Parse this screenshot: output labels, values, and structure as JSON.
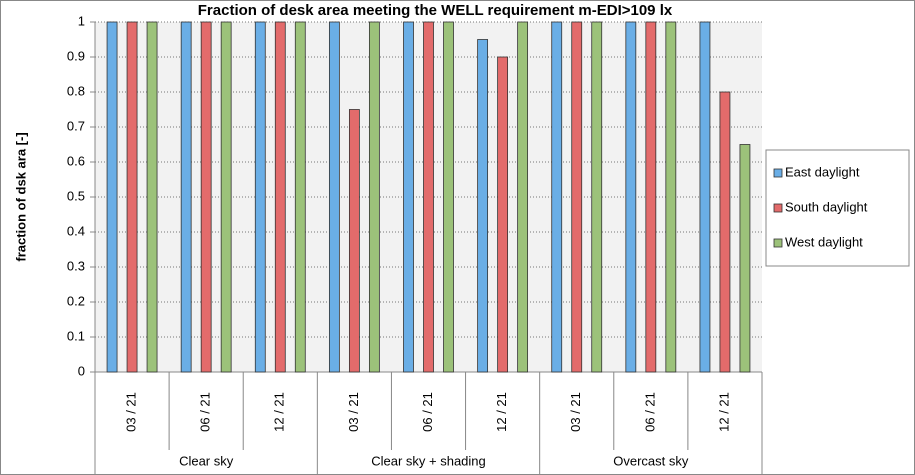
{
  "chart_data": {
    "type": "bar",
    "title": "Fraction of desk area meeting the WELL requirement m-EDI>109 lx",
    "y_label": "fraction of dsk ara  [-]",
    "categories": [
      "03 / 21",
      "06 / 21",
      "12 / 21",
      "03 / 21",
      "06 / 21",
      "12 / 21",
      "03 / 21",
      "06 / 21",
      "12 / 21"
    ],
    "groups": [
      "Clear sky",
      "Clear sky + shading",
      "Overcast sky"
    ],
    "series": [
      {
        "name": "East daylight",
        "color": "#6aaee6",
        "values": [
          1,
          1,
          1,
          1,
          1,
          0.95,
          1,
          1,
          1
        ]
      },
      {
        "name": "South daylight",
        "color": "#e36b6b",
        "values": [
          1,
          1,
          1,
          0.75,
          1,
          0.9,
          1,
          1,
          0.8
        ]
      },
      {
        "name": "West daylight",
        "color": "#9cc27a",
        "values": [
          1,
          1,
          1,
          1,
          1,
          1,
          1,
          1,
          0.65
        ]
      }
    ],
    "ylim": [
      0,
      1
    ],
    "yticks": [
      0,
      0.1,
      0.2,
      0.3,
      0.4,
      0.5,
      0.6,
      0.7,
      0.8,
      0.9,
      1
    ],
    "grid": true,
    "legend": "right"
  }
}
